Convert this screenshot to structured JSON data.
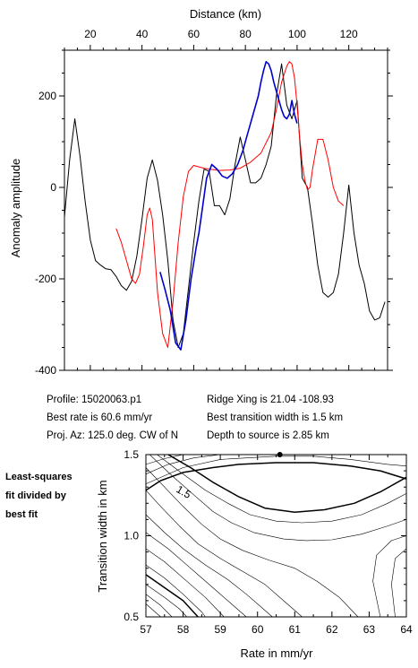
{
  "chart_data": [
    {
      "type": "line",
      "title": "",
      "xlabel": "Distance (km)",
      "ylabel": "Anomaly amplitude",
      "xlim": [
        10,
        135
      ],
      "ylim": [
        -400,
        300
      ],
      "xticks": [
        20,
        40,
        60,
        80,
        100,
        120
      ],
      "yticks": [
        -400,
        -200,
        0,
        200
      ],
      "x_axis_position": "top",
      "grid": false,
      "series": [
        {
          "color": "#000000",
          "x": [
            10,
            12,
            14,
            16,
            18,
            20,
            22,
            24,
            26,
            28,
            30,
            32,
            34,
            36,
            38,
            40,
            42,
            44,
            46,
            48,
            50,
            52,
            54,
            56,
            58,
            60,
            62,
            64,
            66,
            68,
            70,
            72,
            74,
            76,
            78,
            80,
            82,
            84,
            86,
            88,
            90,
            92,
            94,
            96,
            98,
            100,
            102,
            104,
            106,
            108,
            110,
            112,
            114,
            116,
            118,
            120,
            122,
            124,
            126,
            128,
            130,
            132,
            134
          ],
          "y": [
            -65,
            60,
            150,
            70,
            -30,
            -115,
            -160,
            -170,
            -178,
            -180,
            -195,
            -215,
            -225,
            -205,
            -150,
            -70,
            20,
            60,
            15,
            -60,
            -160,
            -290,
            -350,
            -320,
            -220,
            -120,
            -30,
            40,
            35,
            -40,
            -40,
            -60,
            -25,
            50,
            110,
            60,
            10,
            10,
            20,
            50,
            90,
            200,
            270,
            180,
            150,
            190,
            20,
            0,
            -80,
            -170,
            -230,
            -240,
            -230,
            -190,
            -100,
            5,
            -100,
            -170,
            -210,
            -270,
            -290,
            -285,
            -250
          ]
        },
        {
          "color": "#ff0000",
          "x": [
            30,
            32,
            34,
            36,
            37.5,
            39,
            40.5,
            42,
            43,
            44,
            45,
            46,
            48,
            50,
            52,
            54,
            56,
            58,
            60,
            62,
            64,
            66,
            70,
            74,
            78,
            82,
            86,
            90,
            92,
            94,
            96,
            97,
            98,
            99,
            100,
            101,
            102,
            103,
            104,
            105,
            106,
            108,
            110,
            112,
            114,
            116,
            118
          ],
          "y": [
            -90,
            -120,
            -160,
            -200,
            -210,
            -190,
            -130,
            -60,
            -45,
            -70,
            -150,
            -230,
            -320,
            -350,
            -250,
            -120,
            -20,
            35,
            48,
            45,
            42,
            40,
            37,
            38,
            42,
            55,
            75,
            120,
            170,
            230,
            265,
            275,
            270,
            240,
            180,
            110,
            50,
            15,
            -5,
            0,
            40,
            105,
            105,
            60,
            0,
            -30,
            -40
          ]
        },
        {
          "color": "#0000cc",
          "x": [
            47,
            49,
            51,
            53,
            55,
            57,
            59,
            61,
            62,
            63,
            65,
            67,
            69,
            71,
            73,
            75,
            77,
            79,
            81,
            83,
            85,
            86,
            87,
            88,
            89,
            90,
            91,
            92,
            93,
            94,
            95,
            96,
            97,
            98,
            99,
            100
          ],
          "y": [
            -185,
            -225,
            -270,
            -340,
            -355,
            -290,
            -200,
            -130,
            -100,
            -60,
            20,
            50,
            40,
            25,
            20,
            30,
            50,
            80,
            120,
            160,
            200,
            230,
            255,
            275,
            270,
            255,
            230,
            210,
            190,
            170,
            155,
            150,
            160,
            190,
            160,
            140
          ]
        }
      ],
      "info": {
        "profile": "Profile: 15020063.p1",
        "best_rate": "Best rate is 60.6 mm/yr",
        "proj_az": "Proj. Az: 125.0 deg. CW of N",
        "ridge_xing": "Ridge Xing is 21.04 -108.93",
        "transition_width": "Best transition width is 1.5 km",
        "depth": "Depth to source is   2.85 km"
      }
    },
    {
      "type": "contour",
      "title": "",
      "xlabel": "Rate in mm/yr",
      "ylabel": "Transition width in km",
      "xlim": [
        57,
        64
      ],
      "ylim": [
        0.5,
        1.5
      ],
      "xticks": [
        57,
        58,
        59,
        60,
        61,
        62,
        63,
        64
      ],
      "yticks": [
        0.5,
        1.0,
        1.5
      ],
      "side_note": [
        "Least-squares",
        "fit divided by",
        "best fit"
      ],
      "best_fit_point": {
        "x": 60.6,
        "y": 1.5
      },
      "contour_label": "1.5",
      "contours": [
        {
          "bold": false,
          "points": [
            [
              57,
              1.44
            ],
            [
              57.5,
              1.475
            ],
            [
              58,
              1.5
            ]
          ]
        },
        {
          "bold": false,
          "points": [
            [
              57,
              1.38
            ],
            [
              57.6,
              1.44
            ],
            [
              58.3,
              1.48
            ],
            [
              59,
              1.5
            ]
          ]
        },
        {
          "bold": false,
          "points": [
            [
              57,
              1.32
            ],
            [
              58,
              1.42
            ],
            [
              59,
              1.47
            ],
            [
              60.5,
              1.49
            ],
            [
              61.5,
              1.49
            ],
            [
              62.5,
              1.47
            ],
            [
              63.5,
              1.44
            ],
            [
              64,
              1.43
            ]
          ]
        },
        {
          "bold": true,
          "points": [
            [
              57,
              1.28
            ],
            [
              57.4,
              1.34
            ],
            [
              58,
              1.39
            ],
            [
              58.8,
              1.42
            ],
            [
              59.5,
              1.44
            ],
            [
              60.5,
              1.45
            ],
            [
              61.5,
              1.45
            ],
            [
              62.5,
              1.43
            ],
            [
              63.3,
              1.4
            ],
            [
              64,
              1.35
            ]
          ]
        },
        {
          "bold": true,
          "points": [
            [
              57.6,
              1.5
            ],
            [
              58.2,
              1.42
            ],
            [
              58.8,
              1.33
            ],
            [
              59.5,
              1.24
            ],
            [
              60.2,
              1.17
            ],
            [
              61,
              1.145
            ],
            [
              61.8,
              1.16
            ],
            [
              62.6,
              1.2
            ],
            [
              63.3,
              1.27
            ],
            [
              64,
              1.36
            ]
          ]
        },
        {
          "bold": false,
          "points": [
            [
              57.3,
              1.5
            ],
            [
              58,
              1.38
            ],
            [
              58.6,
              1.28
            ],
            [
              59.2,
              1.2
            ],
            [
              59.8,
              1.13
            ],
            [
              60.5,
              1.09
            ],
            [
              61.2,
              1.08
            ],
            [
              62,
              1.09
            ],
            [
              62.8,
              1.13
            ],
            [
              63.5,
              1.2
            ],
            [
              64,
              1.26
            ]
          ]
        },
        {
          "bold": false,
          "points": [
            [
              57.1,
              1.5
            ],
            [
              57.7,
              1.37
            ],
            [
              58.3,
              1.25
            ],
            [
              58.8,
              1.15
            ],
            [
              59.3,
              1.08
            ],
            [
              59.9,
              1.02
            ],
            [
              60.7,
              0.98
            ],
            [
              61.3,
              0.97
            ],
            [
              62,
              0.975
            ],
            [
              62.8,
              1.01
            ],
            [
              63.5,
              1.06
            ],
            [
              64,
              1.1
            ]
          ]
        },
        {
          "bold": false,
          "points": [
            [
              57,
              1.42
            ],
            [
              57.5,
              1.3
            ],
            [
              58,
              1.18
            ],
            [
              58.5,
              1.07
            ],
            [
              59,
              0.98
            ],
            [
              59.6,
              0.91
            ],
            [
              60.3,
              0.85
            ],
            [
              61,
              0.8
            ],
            [
              61.6,
              0.72
            ],
            [
              62.2,
              0.62
            ],
            [
              62.7,
              0.5
            ]
          ]
        },
        {
          "bold": false,
          "points": [
            [
              57,
              1.28
            ],
            [
              57.4,
              1.18
            ],
            [
              57.9,
              1.06
            ],
            [
              58.4,
              0.95
            ],
            [
              59,
              0.86
            ],
            [
              59.6,
              0.78
            ],
            [
              60.2,
              0.7
            ],
            [
              60.7,
              0.6
            ],
            [
              61.2,
              0.5
            ]
          ]
        },
        {
          "bold": false,
          "points": [
            [
              57,
              1.13
            ],
            [
              57.5,
              1.02
            ],
            [
              58,
              0.92
            ],
            [
              58.6,
              0.82
            ],
            [
              59.2,
              0.73
            ],
            [
              59.7,
              0.64
            ],
            [
              60.1,
              0.56
            ],
            [
              60.4,
              0.5
            ]
          ]
        },
        {
          "bold": false,
          "points": [
            [
              57,
              1.02
            ],
            [
              57.6,
              0.92
            ],
            [
              58.2,
              0.8
            ],
            [
              58.8,
              0.68
            ],
            [
              59.3,
              0.58
            ],
            [
              59.7,
              0.5
            ]
          ]
        },
        {
          "bold": false,
          "points": [
            [
              57,
              0.92
            ],
            [
              57.5,
              0.84
            ],
            [
              58.1,
              0.72
            ],
            [
              58.6,
              0.62
            ],
            [
              59.1,
              0.5
            ]
          ]
        },
        {
          "bold": false,
          "points": [
            [
              57,
              0.82
            ],
            [
              57.5,
              0.74
            ],
            [
              58,
              0.64
            ],
            [
              58.5,
              0.53
            ],
            [
              58.6,
              0.5
            ]
          ]
        },
        {
          "bold": true,
          "points": [
            [
              57,
              0.76
            ],
            [
              57.5,
              0.68
            ],
            [
              58,
              0.6
            ],
            [
              58.4,
              0.5
            ]
          ]
        },
        {
          "bold": false,
          "points": [
            [
              57,
              0.7
            ],
            [
              57.5,
              0.62
            ],
            [
              57.9,
              0.55
            ],
            [
              58.1,
              0.5
            ]
          ]
        },
        {
          "bold": false,
          "points": [
            [
              57,
              0.64
            ],
            [
              57.4,
              0.57
            ],
            [
              57.7,
              0.5
            ]
          ]
        },
        {
          "bold": false,
          "points": [
            [
              57,
              0.58
            ],
            [
              57.25,
              0.53
            ],
            [
              57.4,
              0.5
            ]
          ]
        },
        {
          "bold": false,
          "points": [
            [
              63.3,
              0.5
            ],
            [
              63.1,
              0.72
            ],
            [
              63.2,
              0.88
            ],
            [
              63.6,
              0.97
            ],
            [
              64,
              1.0
            ]
          ]
        },
        {
          "bold": false,
          "points": [
            [
              63.7,
              0.5
            ],
            [
              63.6,
              0.7
            ],
            [
              63.7,
              0.86
            ],
            [
              64,
              0.92
            ]
          ]
        }
      ]
    }
  ]
}
